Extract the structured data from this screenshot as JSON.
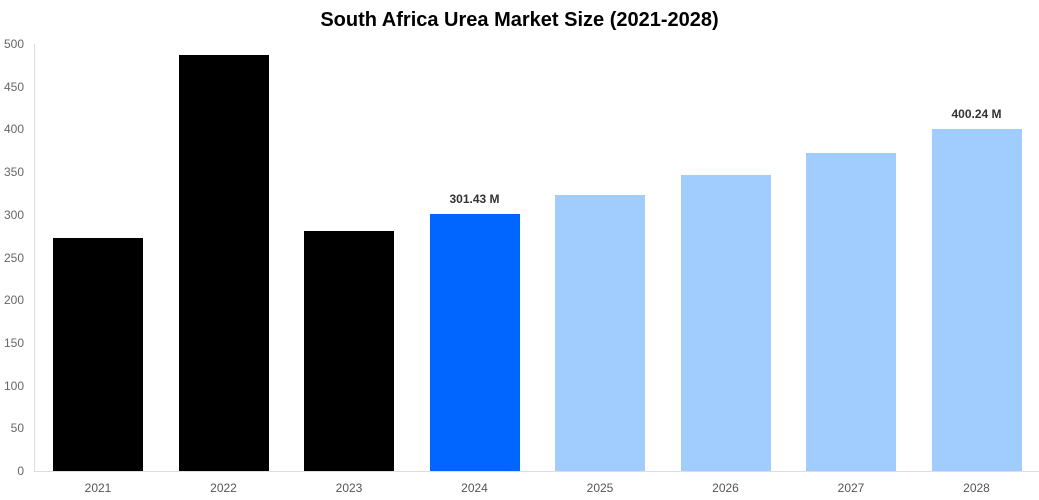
{
  "chart_data": {
    "type": "bar",
    "title": "South Africa Urea Market Size (2021-2028)",
    "xlabel": "",
    "ylabel": "",
    "ylim": [
      0,
      500
    ],
    "yticks": [
      0,
      50,
      100,
      150,
      200,
      250,
      300,
      350,
      400,
      450,
      500
    ],
    "categories": [
      "2021",
      "2022",
      "2023",
      "2024",
      "2025",
      "2026",
      "2027",
      "2028"
    ],
    "values": [
      273,
      487,
      281,
      301.43,
      323,
      347,
      372,
      400.24
    ],
    "colors": [
      "#000000",
      "#000000",
      "#000000",
      "#0066ff",
      "#a0cdfd",
      "#a0cdfd",
      "#a0cdfd",
      "#a0cdfd"
    ],
    "data_labels": [
      "",
      "",
      "",
      "301.43 M",
      "",
      "",
      "",
      "400.24 M"
    ],
    "grid": false,
    "legend": "none"
  }
}
